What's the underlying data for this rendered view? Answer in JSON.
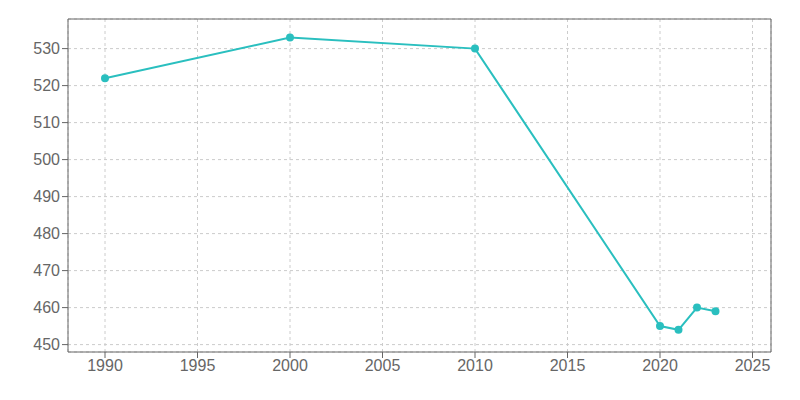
{
  "chart_data": {
    "type": "line",
    "x": [
      1990,
      2000,
      2010,
      2020,
      2021,
      2022,
      2023
    ],
    "values": [
      522,
      533,
      530,
      455,
      454,
      460,
      459
    ],
    "color": "#2abfbf",
    "marker": "circle",
    "xlim": [
      1988,
      2026
    ],
    "ylim": [
      448,
      538
    ],
    "xticks": [
      1990,
      1995,
      2000,
      2005,
      2010,
      2015,
      2020,
      2025
    ],
    "yticks": [
      450,
      460,
      470,
      480,
      490,
      500,
      510,
      520,
      530
    ],
    "grid": true
  }
}
